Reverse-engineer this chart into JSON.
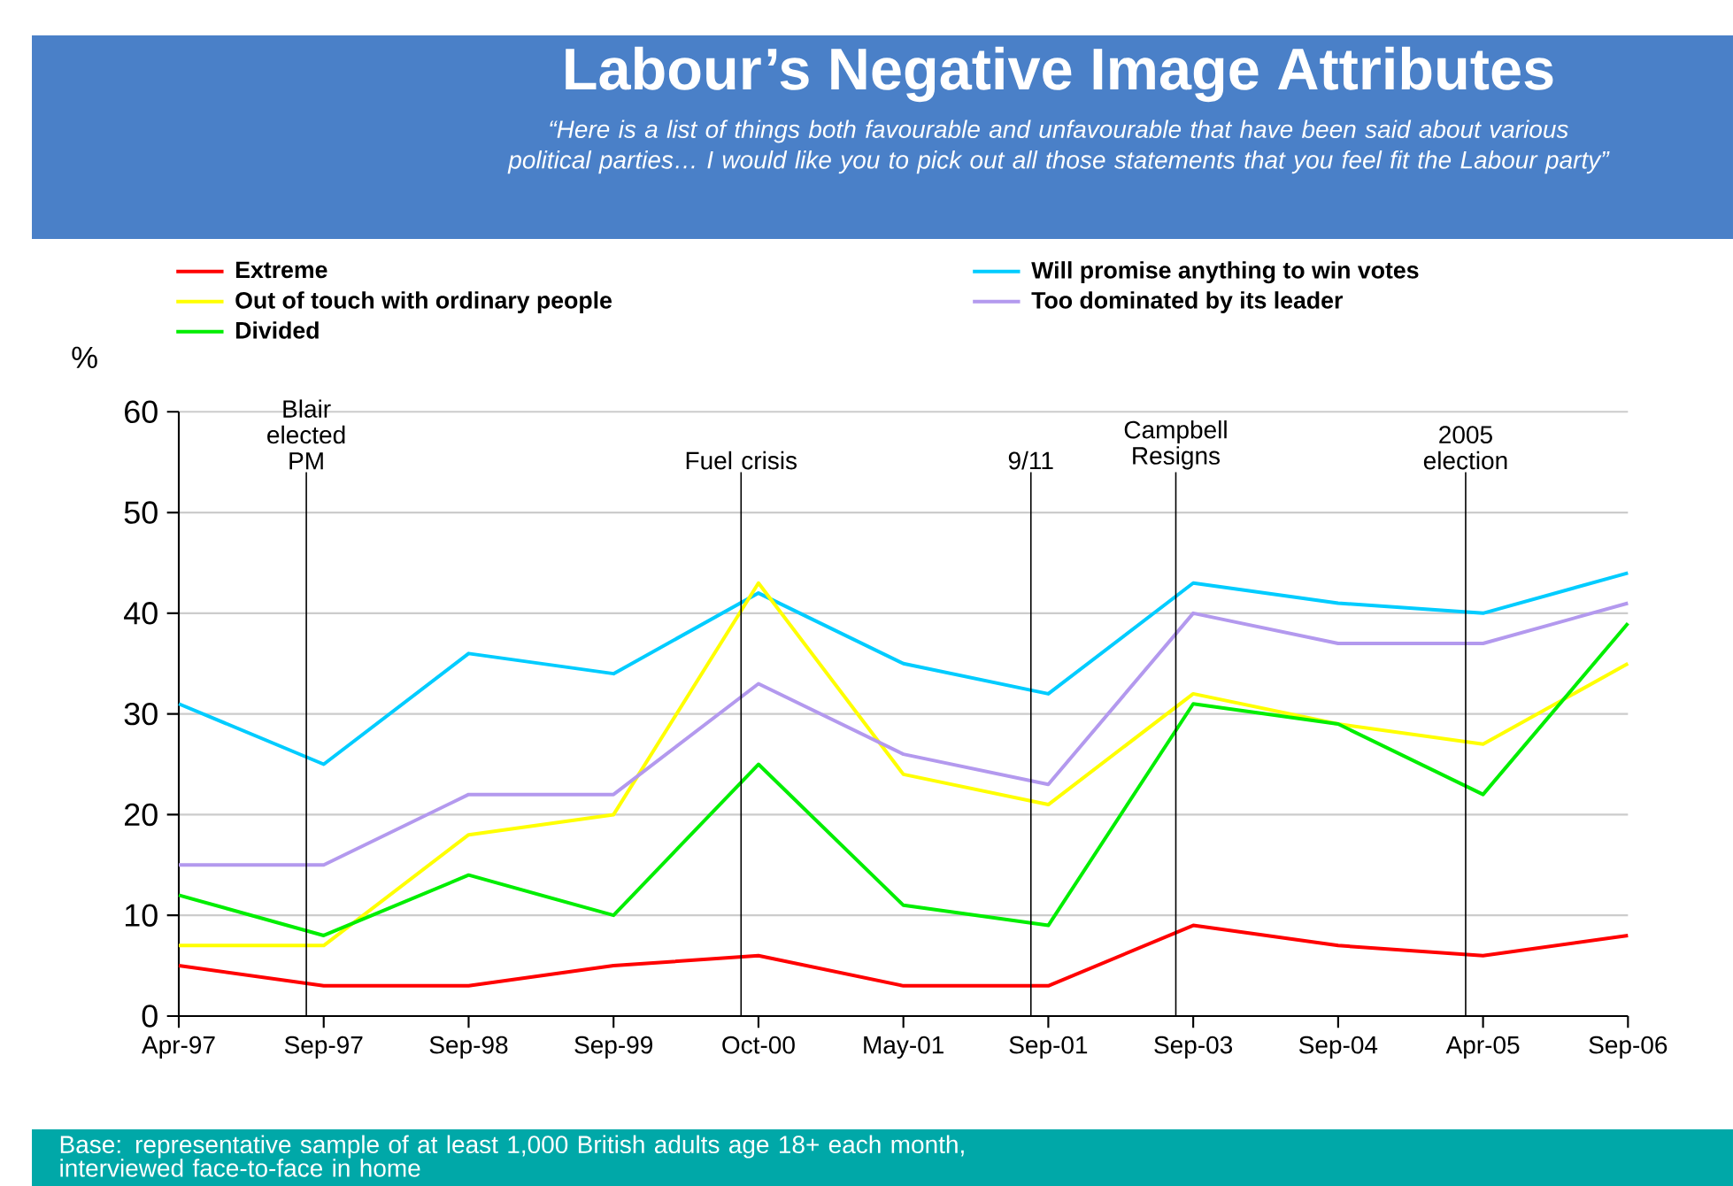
{
  "chart_data": {
    "type": "line",
    "title": "Labour’s Negative Image Attributes",
    "subtitle": "“Here is a list of things both favourable and unfavourable that have been said about various political parties… I would like you to pick out all those statements that you feel fit the Labour party”",
    "ylabel": "%",
    "annotations": [
      "Base: representative sample of at least 1,000 British adults age 18+ each month, interviewed face-to-face in home"
    ],
    "categories": [
      "Apr-97",
      "Sep-97",
      "Sep-98",
      "Sep-99",
      "Oct-00",
      "May-01",
      "Sep-01",
      "Sep-03",
      "Sep-04",
      "Apr-05",
      "Sep-06"
    ],
    "series": [
      {
        "name": "Extreme",
        "color": "#ff0000",
        "values": [
          5,
          3,
          3,
          5,
          6,
          3,
          3,
          9,
          7,
          6,
          8
        ]
      },
      {
        "name": "Will promise anything to win votes",
        "color": "#00ccff",
        "values": [
          31,
          25,
          36,
          34,
          42,
          35,
          32,
          43,
          41,
          40,
          44
        ]
      },
      {
        "name": "Out of touch with ordinary people",
        "color": "#ffff00",
        "values": [
          7,
          7,
          18,
          20,
          43,
          24,
          21,
          32,
          29,
          27,
          35
        ]
      },
      {
        "name": "Too dominated by its leader",
        "color": "#b399ee",
        "values": [
          15,
          15,
          22,
          22,
          33,
          26,
          23,
          40,
          37,
          37,
          41
        ]
      },
      {
        "name": "Divided",
        "color": "#00ee00",
        "values": [
          12,
          8,
          14,
          10,
          25,
          11,
          9,
          31,
          29,
          22,
          39
        ]
      }
    ],
    "ylim": [
      0,
      60
    ],
    "yticks": [
      0,
      10,
      20,
      30,
      40,
      50,
      60
    ],
    "grid": "y",
    "legend": "top",
    "ref_lines": [
      {
        "axis": "x",
        "value": "Sep-97",
        "label": "Blair elected PM"
      },
      {
        "axis": "x",
        "value": "Oct-00",
        "label": "Fuel crisis"
      },
      {
        "axis": "x",
        "value": "Sep-01",
        "label": "9/11"
      },
      {
        "axis": "x",
        "value": "Sep-03",
        "label": "Campbell Resigns"
      },
      {
        "axis": "x",
        "value": "Apr-05",
        "label": "2005 election"
      }
    ]
  }
}
